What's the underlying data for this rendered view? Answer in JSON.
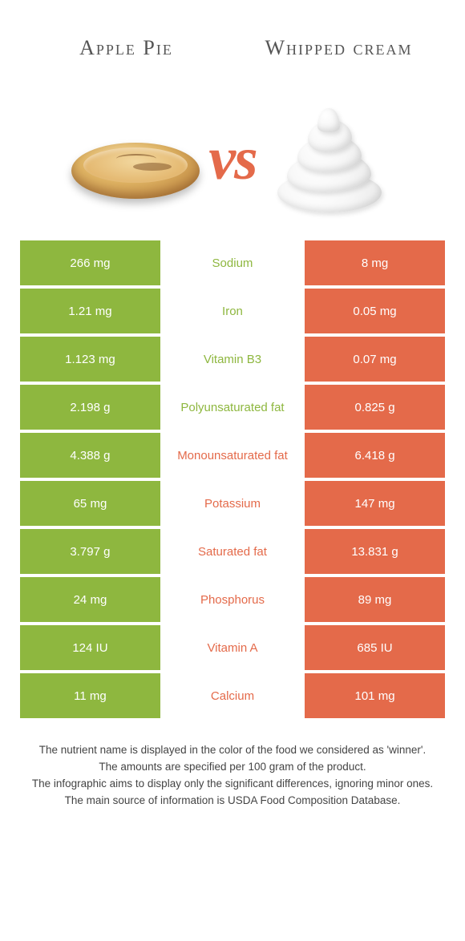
{
  "colors": {
    "left": "#8eb73f",
    "right": "#e46a4a",
    "mid_green": "#8eb73f",
    "mid_orange": "#e46a4a"
  },
  "titles": {
    "left": "Apple Pie",
    "right": "Whipped cream"
  },
  "vs": "vs",
  "rows": [
    {
      "left": "266 mg",
      "mid": "Sodium",
      "right": "8 mg",
      "mid_color": "left"
    },
    {
      "left": "1.21 mg",
      "mid": "Iron",
      "right": "0.05 mg",
      "mid_color": "left"
    },
    {
      "left": "1.123 mg",
      "mid": "Vitamin B3",
      "right": "0.07 mg",
      "mid_color": "left"
    },
    {
      "left": "2.198 g",
      "mid": "Polyunsaturated fat",
      "right": "0.825 g",
      "mid_color": "left"
    },
    {
      "left": "4.388 g",
      "mid": "Monounsaturated fat",
      "right": "6.418 g",
      "mid_color": "right"
    },
    {
      "left": "65 mg",
      "mid": "Potassium",
      "right": "147 mg",
      "mid_color": "right"
    },
    {
      "left": "3.797 g",
      "mid": "Saturated fat",
      "right": "13.831 g",
      "mid_color": "right"
    },
    {
      "left": "24 mg",
      "mid": "Phosphorus",
      "right": "89 mg",
      "mid_color": "right"
    },
    {
      "left": "124 IU",
      "mid": "Vitamin A",
      "right": "685 IU",
      "mid_color": "right"
    },
    {
      "left": "11 mg",
      "mid": "Calcium",
      "right": "101 mg",
      "mid_color": "right"
    }
  ],
  "footer": [
    "The nutrient name is displayed in the color of the food we considered as 'winner'.",
    "The amounts are specified per 100 gram of the product.",
    "The infographic aims to display only the significant differences, ignoring minor ones.",
    "The main source of information is USDA Food Composition Database."
  ]
}
